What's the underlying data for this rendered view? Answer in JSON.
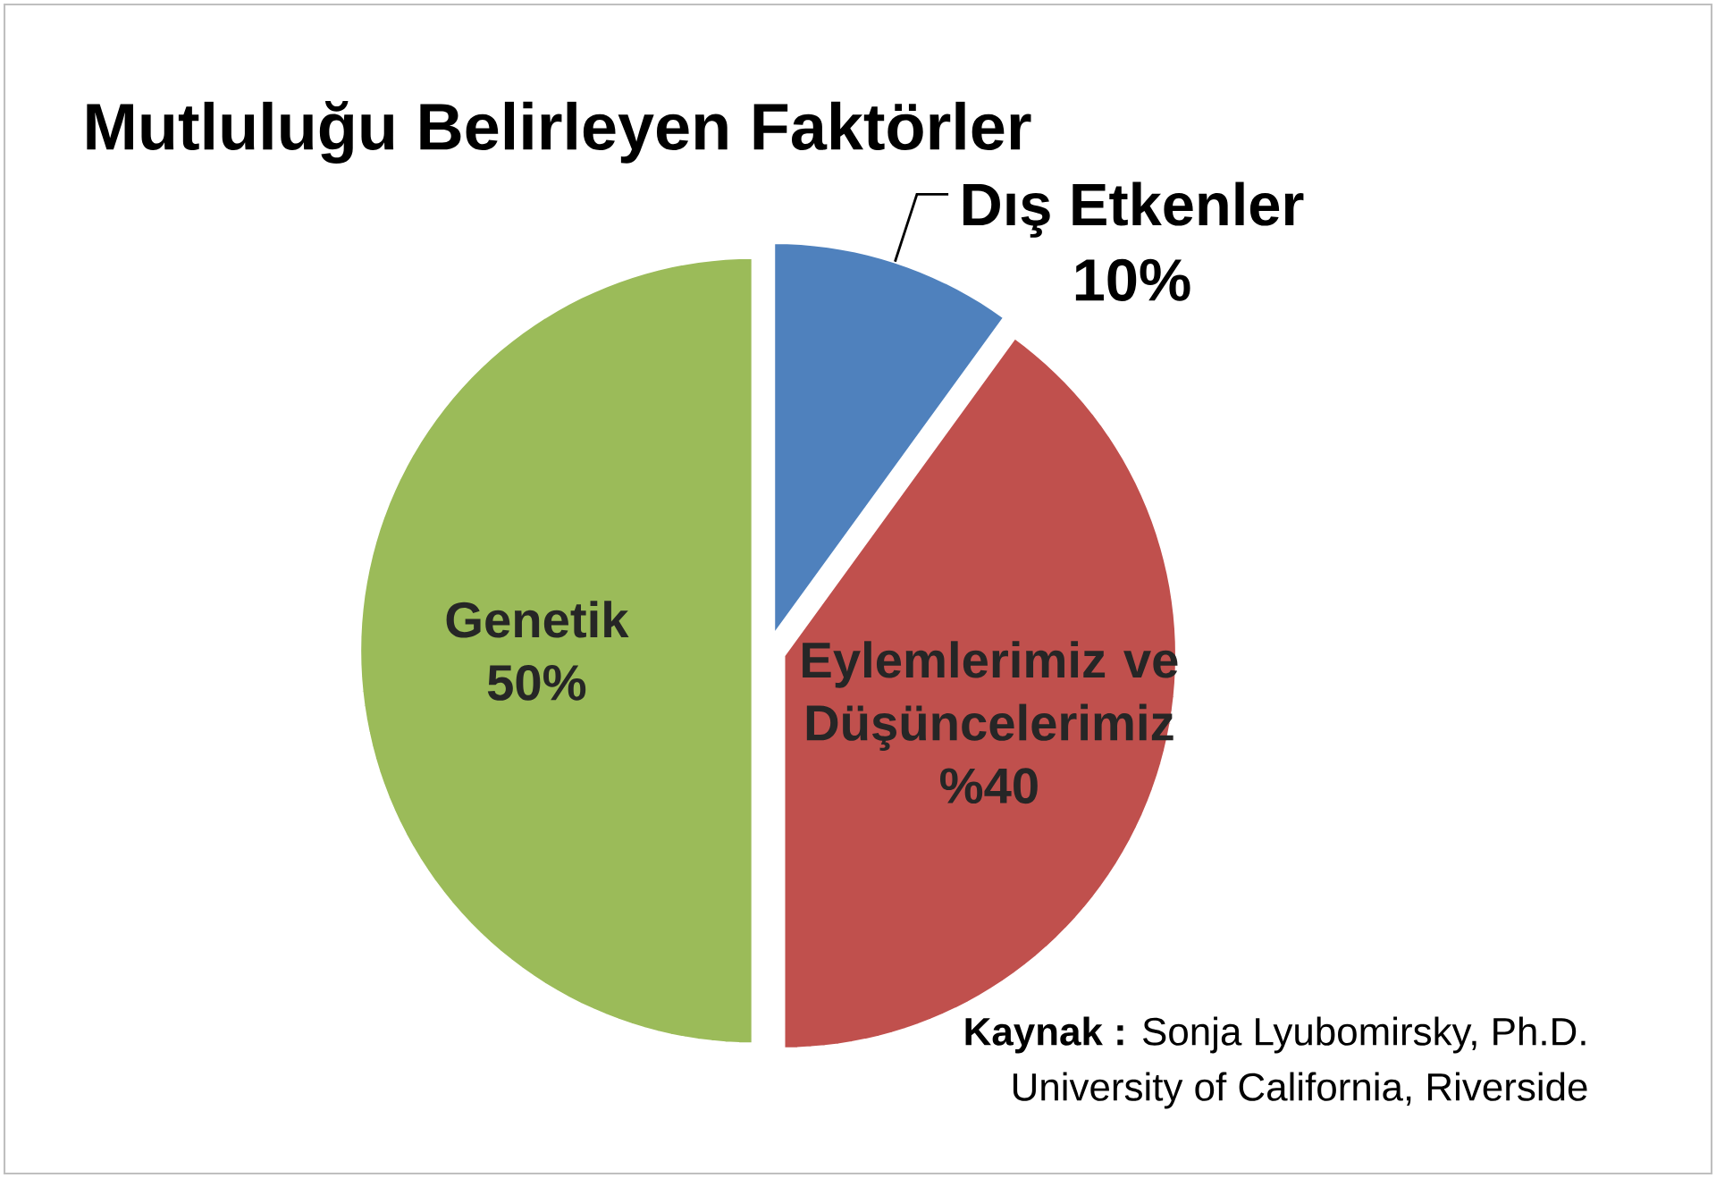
{
  "chart_data": {
    "type": "pie",
    "title": "Mutluluğu Belirleyen Faktörler",
    "categories": [
      "Dış Etkenler",
      "Eylemlerimiz ve Düşüncelerimiz",
      "Genetik"
    ],
    "values": [
      10,
      40,
      50
    ],
    "colors": [
      "#4f81bd",
      "#c0504d",
      "#9bbb59"
    ],
    "value_labels": [
      "10%",
      "%40",
      "50%"
    ],
    "annotations": [
      "**Kaynak :** Sonja Lyubomirsky, Ph.D.",
      "University of California, Riverside"
    ]
  }
}
